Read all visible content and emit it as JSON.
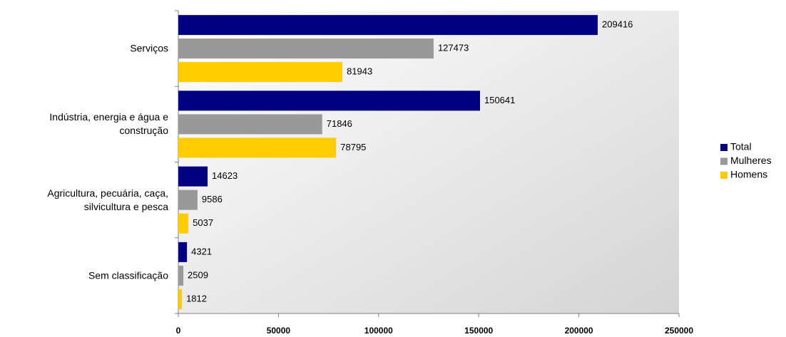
{
  "chart_data": {
    "type": "bar",
    "orientation": "horizontal",
    "categories": [
      "Serviços",
      "Indústria, energia e água e construção",
      "Agricultura, pecuária, caça, silvicultura e pesca",
      "Sem classificação"
    ],
    "series": [
      {
        "name": "Total",
        "color": "#000080",
        "values": [
          209416,
          150641,
          14623,
          4321
        ]
      },
      {
        "name": "Mulheres",
        "color": "#999999",
        "values": [
          127473,
          71846,
          9586,
          2509
        ]
      },
      {
        "name": "Homens",
        "color": "#ffcc00",
        "values": [
          81943,
          78795,
          5037,
          1812
        ]
      }
    ],
    "xlim": [
      0,
      250000
    ],
    "xticks": [
      0,
      50000,
      100000,
      150000,
      200000,
      250000
    ],
    "legend": "right",
    "data_labels": true
  }
}
